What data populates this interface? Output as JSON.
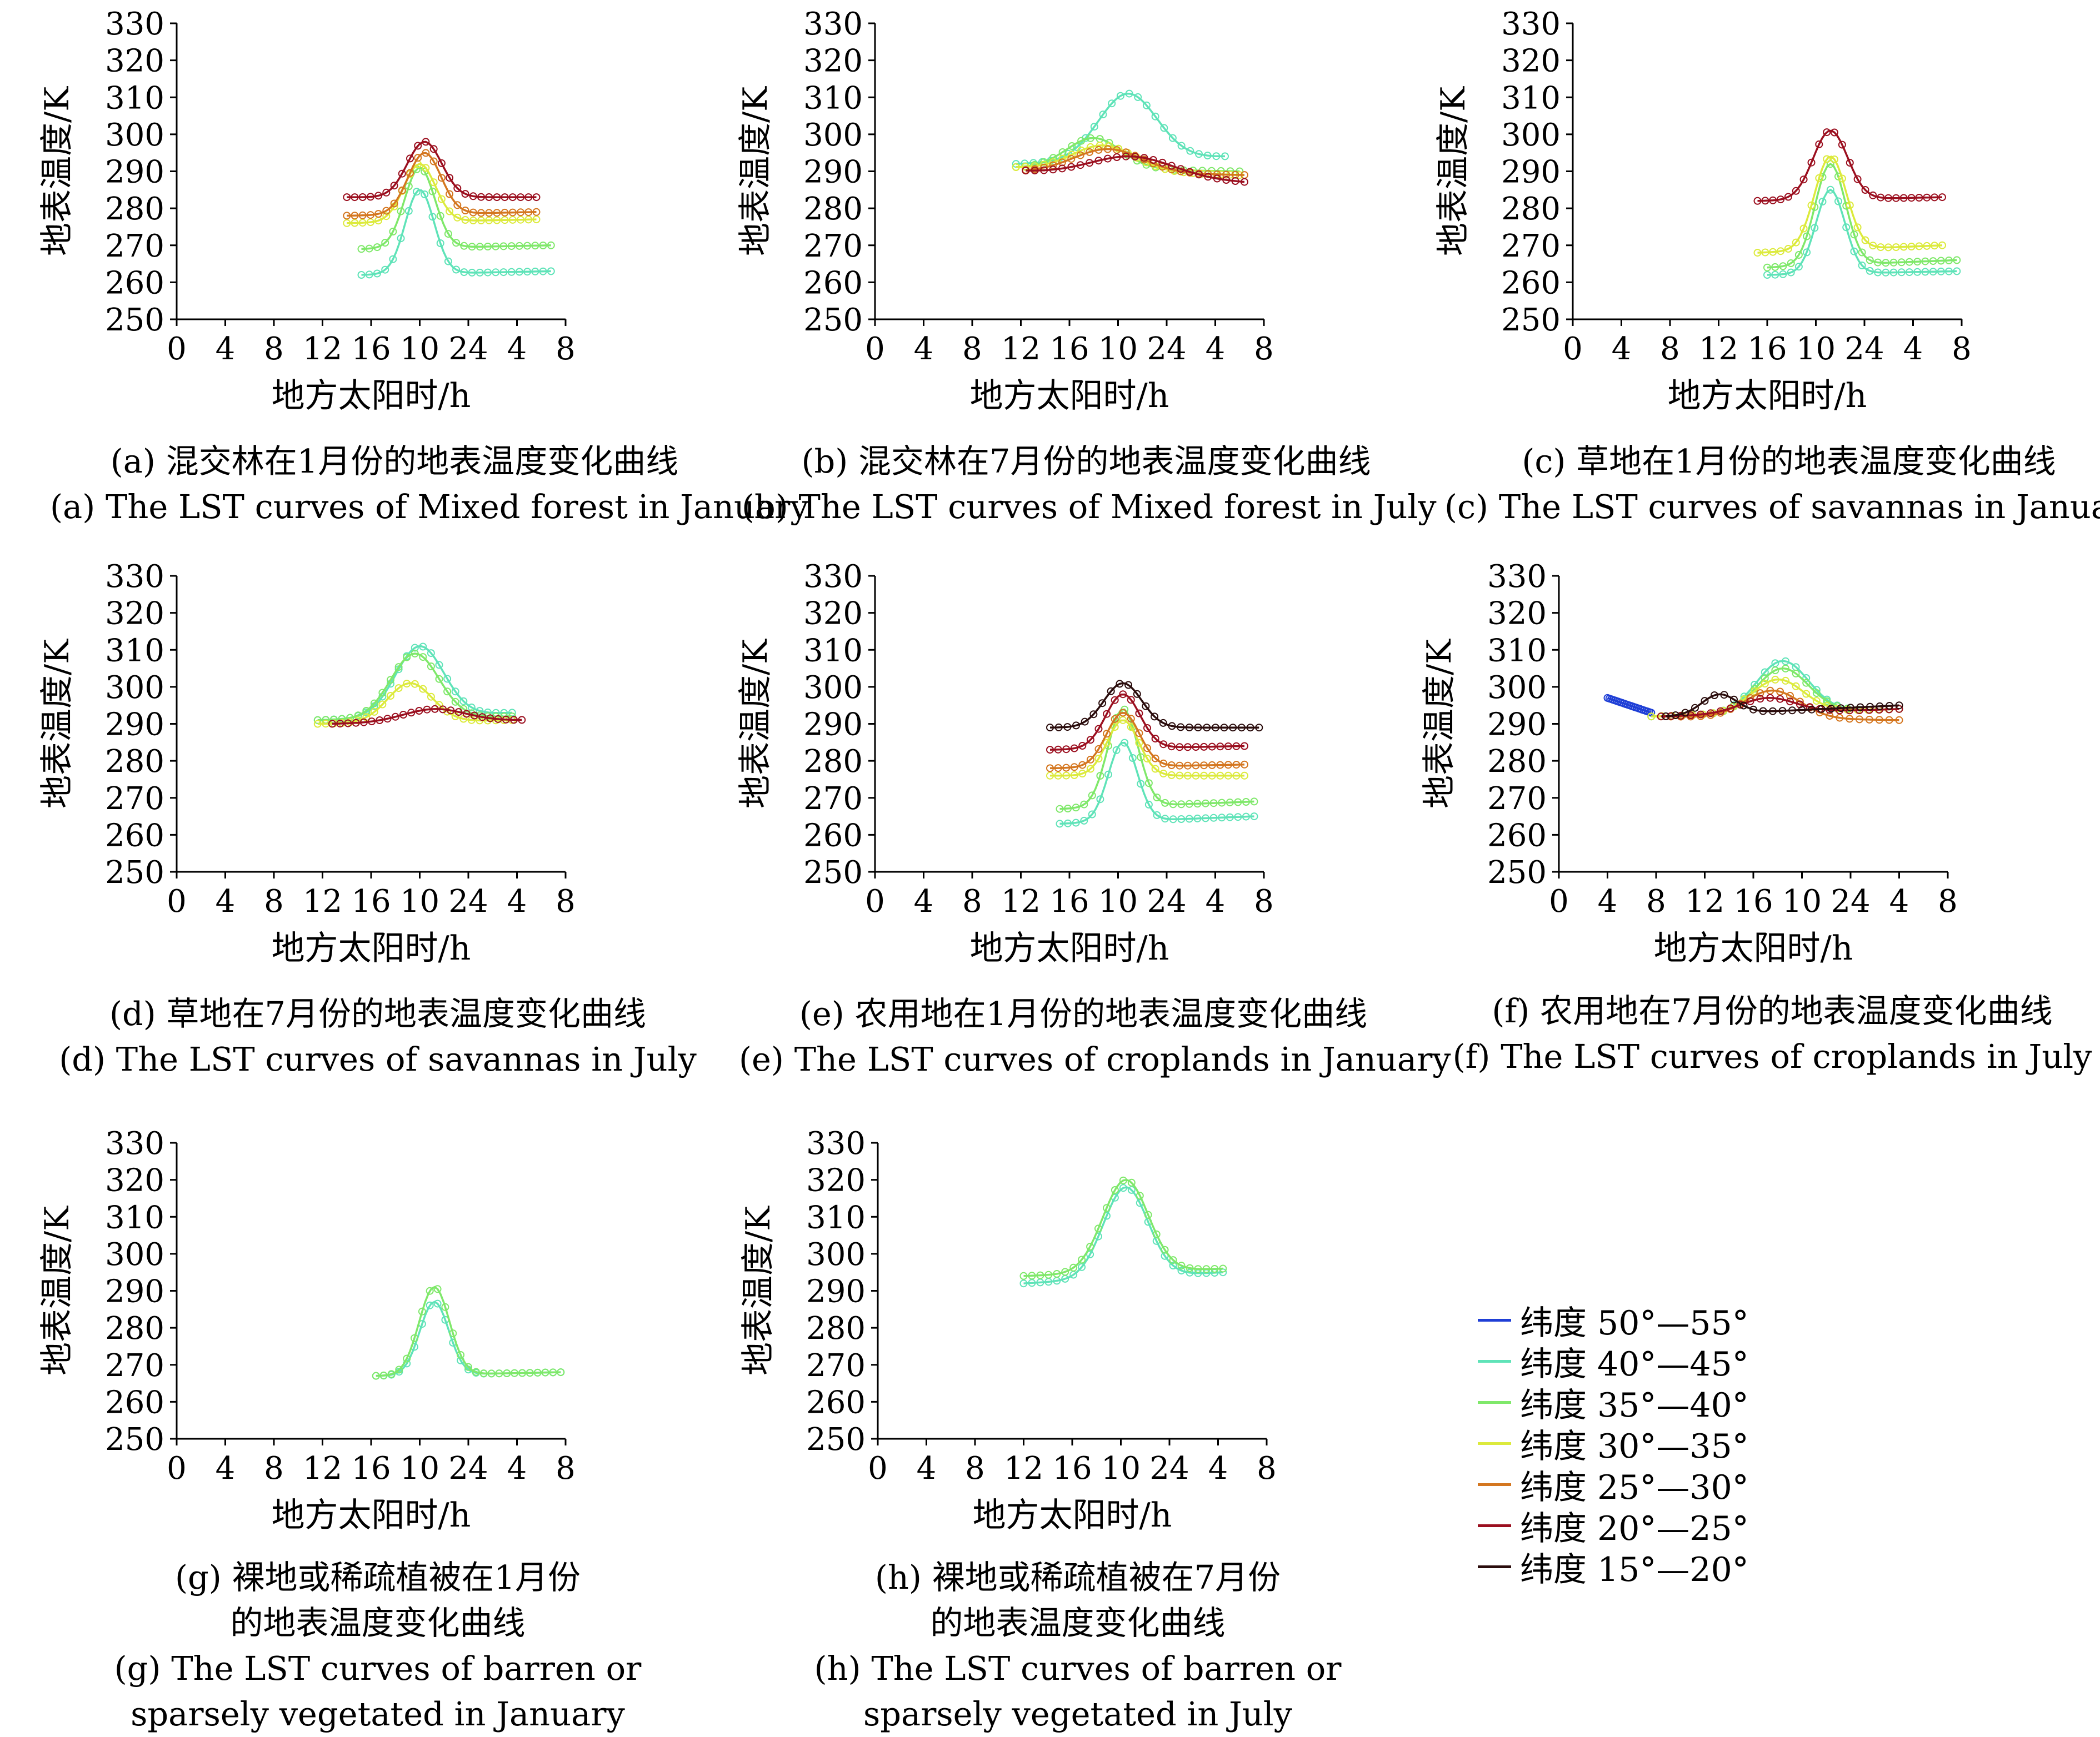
{
  "figure": {
    "x_tick_labels": [
      "0",
      "4",
      "8",
      "12",
      "16",
      "10",
      "24",
      "4",
      "8"
    ],
    "y_tick_labels": [
      "250",
      "260",
      "270",
      "280",
      "290",
      "300",
      "310",
      "320",
      "330"
    ],
    "ylabel": "地表温度/K",
    "xlabel": "地方太阳时/h"
  },
  "legend": [
    {
      "label": "纬度 50°—55°",
      "color": "#1f3fd6"
    },
    {
      "label": "纬度 40°—45°",
      "color": "#5fe3b8"
    },
    {
      "label": "纬度 35°—40°",
      "color": "#7fe86a"
    },
    {
      "label": "纬度 30°—35°",
      "color": "#dcea3c"
    },
    {
      "label": "纬度 25°—30°",
      "color": "#d4761f"
    },
    {
      "label": "纬度 20°—25°",
      "color": "#9b0f1f"
    },
    {
      "label": "纬度 15°—20°",
      "color": "#2a0c0c"
    }
  ],
  "chart_data": [
    {
      "type": "line",
      "id": "a",
      "caption_cn": [
        "(a) 混交林在1月份的地表温度变化曲线"
      ],
      "caption_en": [
        "(a) The LST curves of Mixed forest in January"
      ],
      "title": "",
      "xlabel": "地方太阳时/h",
      "ylabel": "地表温度/K",
      "xlim": [
        0,
        8
      ],
      "ylim": [
        250,
        330
      ],
      "series": [
        {
          "name": "纬度 40°—45°",
          "color": "#5fe3b8",
          "x_start": 3.8,
          "x_end": 7.7,
          "base_start": 262,
          "base_end": 263,
          "peak_x": 5.0,
          "peak": 285,
          "width": 0.42
        },
        {
          "name": "纬度 35°—40°",
          "color": "#7fe86a",
          "x_start": 3.8,
          "x_end": 7.7,
          "base_start": 269,
          "base_end": 270,
          "peak_x": 5.0,
          "peak": 291,
          "width": 0.44
        },
        {
          "name": "纬度 30°—35°",
          "color": "#dcea3c",
          "x_start": 3.5,
          "x_end": 7.4,
          "base_start": 276,
          "base_end": 277,
          "peak_x": 5.0,
          "peak": 292,
          "width": 0.46
        },
        {
          "name": "纬度 25°—30°",
          "color": "#d4761f",
          "x_start": 3.5,
          "x_end": 7.4,
          "base_start": 278,
          "base_end": 279,
          "peak_x": 5.1,
          "peak": 295,
          "width": 0.48
        },
        {
          "name": "纬度 20°—25°",
          "color": "#9b0f1f",
          "x_start": 3.5,
          "x_end": 7.4,
          "base_start": 283,
          "base_end": 283,
          "peak_x": 5.1,
          "peak": 298,
          "width": 0.5
        }
      ]
    },
    {
      "type": "line",
      "id": "b",
      "caption_cn": [
        "(b) 混交林在7月份的地表温度变化曲线"
      ],
      "caption_en": [
        "(b) The LST curves of Mixed forest in July"
      ],
      "title": "",
      "xlabel": "地方太阳时/h",
      "ylabel": "地表温度/K",
      "xlim": [
        0,
        8
      ],
      "ylim": [
        250,
        330
      ],
      "series": [
        {
          "name": "纬度 40°—45°",
          "color": "#5fe3b8",
          "x_start": 2.9,
          "x_end": 7.2,
          "base_start": 292,
          "base_end": 294,
          "peak_x": 5.2,
          "peak": 311,
          "width": 0.85
        },
        {
          "name": "纬度 35°—40°",
          "color": "#7fe86a",
          "x_start": 2.9,
          "x_end": 7.5,
          "base_start": 291,
          "base_end": 290,
          "peak_x": 4.5,
          "peak": 299,
          "width": 0.8
        },
        {
          "name": "纬度 30°—35°",
          "color": "#dcea3c",
          "x_start": 2.9,
          "x_end": 7.5,
          "base_start": 291,
          "base_end": 289,
          "peak_x": 4.7,
          "peak": 297,
          "width": 0.9
        },
        {
          "name": "纬度 25°—30°",
          "color": "#d4761f",
          "x_start": 3.1,
          "x_end": 7.6,
          "base_start": 290,
          "base_end": 289,
          "peak_x": 4.8,
          "peak": 296,
          "width": 1.0
        },
        {
          "name": "纬度 20°—25°",
          "color": "#9b0f1f",
          "x_start": 3.1,
          "x_end": 7.6,
          "base_start": 290,
          "base_end": 287,
          "peak_x": 5.3,
          "peak": 294,
          "width": 1.2
        }
      ]
    },
    {
      "type": "line",
      "id": "c",
      "caption_cn": [
        "(c) 草地在1月份的地表温度变化曲线"
      ],
      "caption_en": [
        "(c) The LST curves of savannas in January"
      ],
      "title": "",
      "xlabel": "地方太阳时/h",
      "ylabel": "地表温度/K",
      "xlim": [
        0,
        8
      ],
      "ylim": [
        250,
        330
      ],
      "series": [
        {
          "name": "纬度 40°—45°",
          "color": "#5fe3b8",
          "x_start": 4.0,
          "x_end": 7.9,
          "base_start": 262,
          "base_end": 263,
          "peak_x": 5.3,
          "peak": 285,
          "width": 0.42
        },
        {
          "name": "纬度 35°—40°",
          "color": "#7fe86a",
          "x_start": 4.0,
          "x_end": 7.9,
          "base_start": 264,
          "base_end": 266,
          "peak_x": 5.3,
          "peak": 292,
          "width": 0.44
        },
        {
          "name": "纬度 30°—35°",
          "color": "#dcea3c",
          "x_start": 3.8,
          "x_end": 7.6,
          "base_start": 268,
          "base_end": 270,
          "peak_x": 5.3,
          "peak": 294,
          "width": 0.46
        },
        {
          "name": "纬度 20°—25°",
          "color": "#9b0f1f",
          "x_start": 3.8,
          "x_end": 7.6,
          "base_start": 282,
          "base_end": 283,
          "peak_x": 5.3,
          "peak": 301,
          "width": 0.5
        }
      ]
    },
    {
      "type": "line",
      "id": "d",
      "caption_cn": [
        "(d) 草地在7月份的地表温度变化曲线"
      ],
      "caption_en": [
        "(d) The LST curves of savannas in July"
      ],
      "title": "",
      "xlabel": "地方太阳时/h",
      "ylabel": "地表温度/K",
      "xlim": [
        0,
        8
      ],
      "ylim": [
        250,
        330
      ],
      "series": [
        {
          "name": "纬度 40°—45°",
          "color": "#5fe3b8",
          "x_start": 2.9,
          "x_end": 6.9,
          "base_start": 291,
          "base_end": 293,
          "peak_x": 5.0,
          "peak": 311,
          "width": 0.7
        },
        {
          "name": "纬度 35°—40°",
          "color": "#7fe86a",
          "x_start": 2.9,
          "x_end": 6.9,
          "base_start": 291,
          "base_end": 292,
          "peak_x": 4.9,
          "peak": 309,
          "width": 0.7
        },
        {
          "name": "纬度 30°—35°",
          "color": "#dcea3c",
          "x_start": 2.9,
          "x_end": 6.9,
          "base_start": 290,
          "base_end": 291,
          "peak_x": 4.8,
          "peak": 301,
          "width": 0.65
        },
        {
          "name": "纬度 20°—25°",
          "color": "#9b0f1f",
          "x_start": 3.2,
          "x_end": 7.1,
          "base_start": 290,
          "base_end": 291,
          "peak_x": 5.3,
          "peak": 294,
          "width": 0.9
        }
      ]
    },
    {
      "type": "line",
      "id": "e",
      "caption_cn": [
        "(e) 农用地在1月份的地表温度变化曲线"
      ],
      "caption_en": [
        "(e) The LST curves of croplands in January"
      ],
      "title": "",
      "xlabel": "地方太阳时/h",
      "ylabel": "地表温度/K",
      "xlim": [
        0,
        8
      ],
      "ylim": [
        250,
        330
      ],
      "series": [
        {
          "name": "纬度 40°—45°",
          "color": "#5fe3b8",
          "x_start": 3.8,
          "x_end": 7.8,
          "base_start": 263,
          "base_end": 265,
          "peak_x": 5.1,
          "peak": 285,
          "width": 0.42
        },
        {
          "name": "纬度 35°—40°",
          "color": "#7fe86a",
          "x_start": 3.8,
          "x_end": 7.8,
          "base_start": 267,
          "base_end": 269,
          "peak_x": 5.1,
          "peak": 294,
          "width": 0.44
        },
        {
          "name": "纬度 30°—35°",
          "color": "#dcea3c",
          "x_start": 3.6,
          "x_end": 7.6,
          "base_start": 276,
          "base_end": 276,
          "peak_x": 5.1,
          "peak": 291,
          "width": 0.46
        },
        {
          "name": "纬度 25°—30°",
          "color": "#d4761f",
          "x_start": 3.6,
          "x_end": 7.6,
          "base_start": 278,
          "base_end": 279,
          "peak_x": 5.1,
          "peak": 293,
          "width": 0.48
        },
        {
          "name": "纬度 20°—25°",
          "color": "#9b0f1f",
          "x_start": 3.6,
          "x_end": 7.6,
          "base_start": 283,
          "base_end": 284,
          "peak_x": 5.1,
          "peak": 298,
          "width": 0.5
        },
        {
          "name": "纬度 15°—20°",
          "color": "#2a0c0c",
          "x_start": 3.6,
          "x_end": 7.9,
          "base_start": 289,
          "base_end": 289,
          "peak_x": 5.1,
          "peak": 301,
          "width": 0.55
        }
      ]
    },
    {
      "type": "line",
      "id": "f",
      "caption_cn": [
        "(f) 农用地在7月份的地表温度变化曲线"
      ],
      "caption_en": [
        "(f) The LST curves of croplands in July"
      ],
      "title": "",
      "xlabel": "地方太阳时/h",
      "ylabel": "地表温度/K",
      "xlim": [
        0,
        8
      ],
      "ylim": [
        250,
        330
      ],
      "series": [
        {
          "name": "纬度 50°—55°",
          "color": "#1f3fd6",
          "x_start": 1.0,
          "x_end": 1.9,
          "base_start": 297,
          "base_end": 293,
          "peak_x": 1.0,
          "peak": 297,
          "width": 0.1
        },
        {
          "name": "纬度 40°—45°",
          "color": "#5fe3b8",
          "x_start": 1.9,
          "x_end": 7.0,
          "base_start": 292,
          "base_end": 294,
          "peak_x": 4.6,
          "peak": 307,
          "width": 0.75
        },
        {
          "name": "纬度 35°—40°",
          "color": "#7fe86a",
          "x_start": 1.9,
          "x_end": 7.0,
          "base_start": 292,
          "base_end": 294,
          "peak_x": 4.6,
          "peak": 305,
          "width": 0.75
        },
        {
          "name": "纬度 30°—35°",
          "color": "#dcea3c",
          "x_start": 1.9,
          "x_end": 7.0,
          "base_start": 292,
          "base_end": 294,
          "peak_x": 4.5,
          "peak": 302,
          "width": 0.75
        },
        {
          "name": "纬度 25°—30°",
          "color": "#d4761f",
          "x_start": 2.1,
          "x_end": 7.0,
          "base_start": 292,
          "base_end": 291,
          "peak_x": 4.4,
          "peak": 299,
          "width": 0.8
        },
        {
          "name": "纬度 20°—25°",
          "color": "#9b0f1f",
          "x_start": 2.1,
          "x_end": 7.0,
          "base_start": 292,
          "base_end": 294,
          "peak_x": 4.3,
          "peak": 297,
          "width": 0.8
        },
        {
          "name": "纬度 15°—20°",
          "color": "#2a0c0c",
          "x_start": 2.2,
          "x_end": 7.0,
          "base_start": 292,
          "base_end": 295,
          "peak_x": 3.3,
          "peak": 298,
          "width": 0.5
        }
      ]
    },
    {
      "type": "line",
      "id": "g",
      "caption_cn": [
        "(g) 裸地或稀疏植被在1月份",
        "的地表温度变化曲线"
      ],
      "caption_en": [
        "(g) The LST curves of barren or",
        "sparsely vegetated in January"
      ],
      "title": "",
      "xlabel": "地方太阳时/h",
      "ylabel": "地表温度/K",
      "xlim": [
        0,
        8
      ],
      "ylim": [
        250,
        330
      ],
      "series": [
        {
          "name": "纬度 40°—45°",
          "color": "#5fe3b8",
          "x_start": 4.1,
          "x_end": 7.9,
          "base_start": 267,
          "base_end": 268,
          "peak_x": 5.3,
          "peak": 287,
          "width": 0.42
        },
        {
          "name": "纬度 35°—40°",
          "color": "#7fe86a",
          "x_start": 4.1,
          "x_end": 7.9,
          "base_start": 267,
          "base_end": 268,
          "peak_x": 5.3,
          "peak": 291,
          "width": 0.44
        }
      ]
    },
    {
      "type": "line",
      "id": "h",
      "caption_cn": [
        "(h) 裸地或稀疏植被在7月份",
        "的地表温度变化曲线"
      ],
      "caption_en": [
        "(h) The LST curves of barren or",
        "sparsely vegetated in July"
      ],
      "title": "",
      "xlabel": "地方太阳时/h",
      "ylabel": "地表温度/K",
      "xlim": [
        0,
        8
      ],
      "ylim": [
        250,
        330
      ],
      "series": [
        {
          "name": "纬度 40°—45°",
          "color": "#5fe3b8",
          "x_start": 3.0,
          "x_end": 7.1,
          "base_start": 292,
          "base_end": 295,
          "peak_x": 5.1,
          "peak": 318,
          "width": 0.65
        },
        {
          "name": "纬度 35°—40°",
          "color": "#7fe86a",
          "x_start": 3.0,
          "x_end": 7.1,
          "base_start": 294,
          "base_end": 296,
          "peak_x": 5.1,
          "peak": 320,
          "width": 0.66
        }
      ]
    }
  ]
}
